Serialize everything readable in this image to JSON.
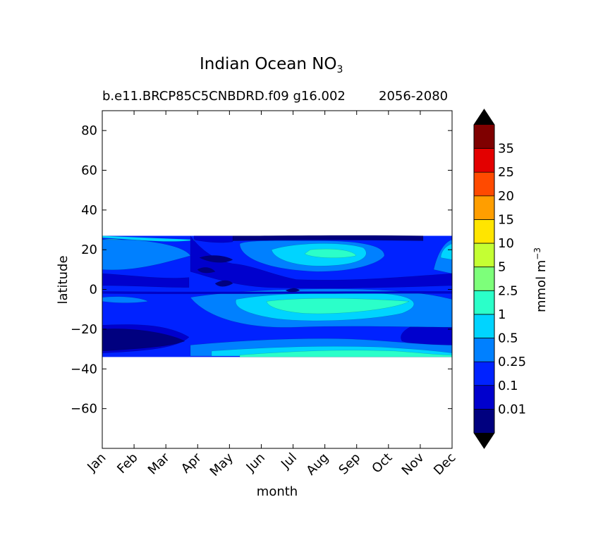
{
  "chart_data": {
    "type": "heatmap",
    "title_main": "Indian Ocean NO",
    "title_subscript": "3",
    "subtitle_left": "b.e11.BRCP85C5CNBDRD.f09 g16.002",
    "subtitle_right": "2056-2080",
    "xlabel": "month",
    "ylabel": "latitude",
    "x_categories": [
      "Jan",
      "Feb",
      "Mar",
      "Apr",
      "May",
      "Jun",
      "Jul",
      "Aug",
      "Sep",
      "Oct",
      "Nov",
      "Dec"
    ],
    "ylim": [
      -80,
      90
    ],
    "y_ticks": [
      80,
      60,
      40,
      20,
      0,
      -20,
      -40,
      -60
    ],
    "y_tick_labels": [
      "80",
      "60",
      "40",
      "20",
      "0",
      "−20",
      "−40",
      "−60"
    ],
    "data_lat_range": [
      -34,
      27
    ],
    "colorbar": {
      "label": "mmol m",
      "label_superscript": "−3",
      "levels": [
        "0.01",
        "0.1",
        "0.25",
        "0.5",
        "1",
        "2.5",
        "5",
        "10",
        "15",
        "20",
        "25",
        "35"
      ],
      "colors": [
        "#00007f",
        "#0000cd",
        "#0022ff",
        "#0080ff",
        "#00d4ff",
        "#2bffc9",
        "#7dff7a",
        "#c4ff33",
        "#ffe500",
        "#ff9e00",
        "#ff4a00",
        "#e30000",
        "#7f0000"
      ],
      "extend": "both",
      "extend_colors": [
        "#000000",
        "#000000"
      ]
    },
    "grid": false,
    "legend": "colorbar-right"
  }
}
